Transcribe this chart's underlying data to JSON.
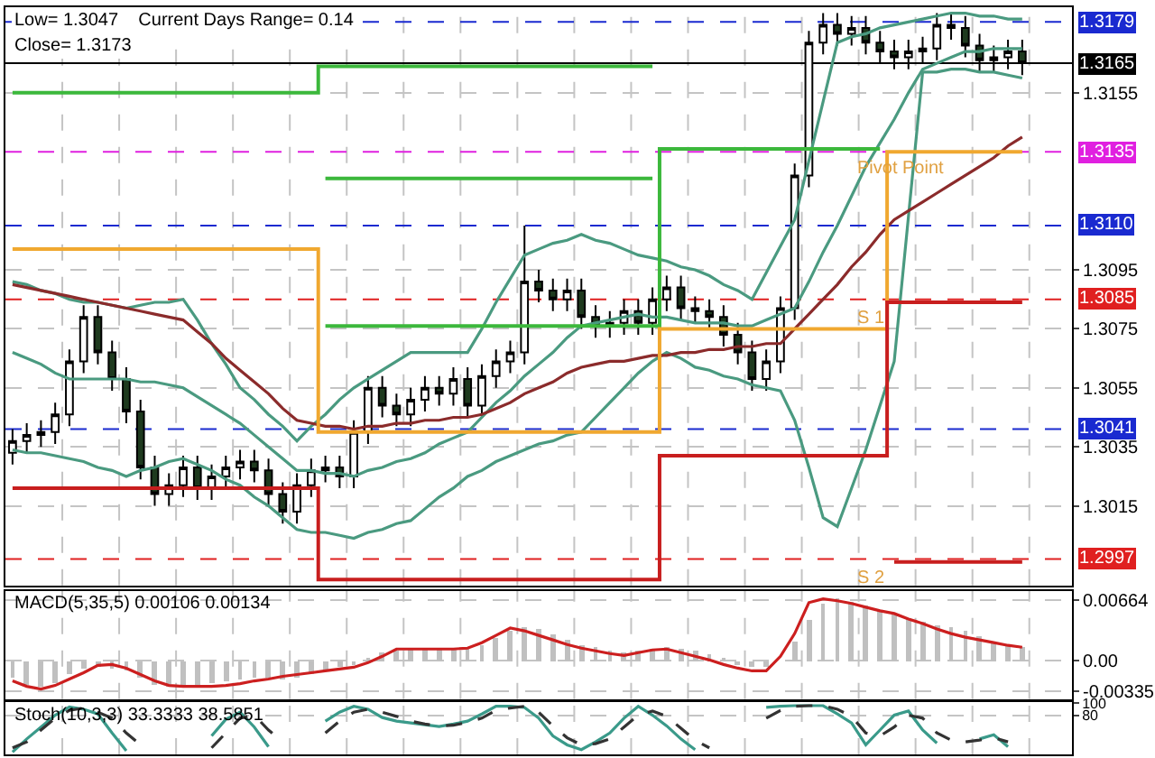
{
  "chart_data": [
    {
      "type": "candlestick",
      "categories": [
        null,
        null,
        null,
        null,
        null,
        null,
        null,
        null,
        null,
        null,
        null,
        null,
        null,
        null,
        null,
        null,
        null,
        null,
        null,
        null,
        null,
        null,
        null,
        null,
        null,
        null,
        null,
        null,
        null,
        null,
        null,
        null,
        null,
        null,
        null,
        null,
        null,
        null,
        null,
        null,
        null,
        null,
        null,
        null,
        null,
        null,
        null,
        null,
        null,
        null,
        null,
        null,
        null,
        null,
        null,
        null,
        null,
        null,
        null,
        null,
        null,
        null,
        null,
        null,
        null,
        null,
        null,
        null,
        null,
        null,
        null,
        null
      ],
      "ohlc": [
        [
          1.3033,
          1.3041,
          1.3029,
          1.3037
        ],
        [
          1.3037,
          1.3043,
          1.3033,
          1.3039
        ],
        [
          1.3039,
          1.3044,
          1.3035,
          1.304
        ],
        [
          1.304,
          1.305,
          1.3036,
          1.3046
        ],
        [
          1.3046,
          1.3068,
          1.3042,
          1.3064
        ],
        [
          1.3064,
          1.3083,
          1.306,
          1.3079
        ],
        [
          1.3079,
          1.3083,
          1.3063,
          1.3067
        ],
        [
          1.3067,
          1.3071,
          1.3054,
          1.3058
        ],
        [
          1.3058,
          1.3062,
          1.3043,
          1.3047
        ],
        [
          1.3047,
          1.3051,
          1.3024,
          1.3028
        ],
        [
          1.3028,
          1.3032,
          1.3015,
          1.3019
        ],
        [
          1.3019,
          1.3026,
          1.3015,
          1.3022
        ],
        [
          1.3022,
          1.3032,
          1.3018,
          1.3028
        ],
        [
          1.3028,
          1.3032,
          1.3017,
          1.3021
        ],
        [
          1.3021,
          1.3029,
          1.3017,
          1.3025
        ],
        [
          1.3025,
          1.3032,
          1.3021,
          1.3028
        ],
        [
          1.3028,
          1.3034,
          1.3024,
          1.303
        ],
        [
          1.303,
          1.3034,
          1.3023,
          1.3027
        ],
        [
          1.3027,
          1.3031,
          1.3015,
          1.3019
        ],
        [
          1.3019,
          1.3023,
          1.3009,
          1.3013
        ],
        [
          1.3013,
          1.3026,
          1.3009,
          1.3022
        ],
        [
          1.3022,
          1.3031,
          1.3018,
          1.3027
        ],
        [
          1.3027,
          1.3032,
          1.3023,
          1.3028
        ],
        [
          1.3028,
          1.3032,
          1.3021,
          1.3025
        ],
        [
          1.3025,
          1.3044,
          1.3021,
          1.304
        ],
        [
          1.304,
          1.3059,
          1.3036,
          1.3055
        ],
        [
          1.3055,
          1.3059,
          1.3045,
          1.3049
        ],
        [
          1.3049,
          1.3053,
          1.3042,
          1.3046
        ],
        [
          1.3046,
          1.3055,
          1.3042,
          1.3051
        ],
        [
          1.3051,
          1.3059,
          1.3047,
          1.3055
        ],
        [
          1.3055,
          1.3059,
          1.3049,
          1.3053
        ],
        [
          1.3053,
          1.3062,
          1.3049,
          1.3058
        ],
        [
          1.3058,
          1.3062,
          1.3045,
          1.3049
        ],
        [
          1.3049,
          1.3063,
          1.3045,
          1.3059
        ],
        [
          1.3059,
          1.3068,
          1.3055,
          1.3064
        ],
        [
          1.3064,
          1.3071,
          1.306,
          1.3067
        ],
        [
          1.3067,
          1.311,
          1.3063,
          1.3091
        ],
        [
          1.3091,
          1.3095,
          1.3084,
          1.3088
        ],
        [
          1.3088,
          1.3092,
          1.3081,
          1.3085
        ],
        [
          1.3085,
          1.3092,
          1.3081,
          1.3088
        ],
        [
          1.3088,
          1.3092,
          1.3075,
          1.3079
        ],
        [
          1.3079,
          1.3083,
          1.3072,
          1.3076
        ],
        [
          1.3076,
          1.3081,
          1.3072,
          1.3077
        ],
        [
          1.3077,
          1.3085,
          1.3073,
          1.3081
        ],
        [
          1.3081,
          1.3085,
          1.3073,
          1.3077
        ],
        [
          1.3077,
          1.3089,
          1.3073,
          1.3085
        ],
        [
          1.3085,
          1.3093,
          1.3081,
          1.3089
        ],
        [
          1.3089,
          1.3093,
          1.3078,
          1.3082
        ],
        [
          1.3082,
          1.3086,
          1.3077,
          1.3081
        ],
        [
          1.3081,
          1.3085,
          1.3075,
          1.3079
        ],
        [
          1.3079,
          1.3083,
          1.3069,
          1.3073
        ],
        [
          1.3073,
          1.3077,
          1.3063,
          1.3067
        ],
        [
          1.3067,
          1.3071,
          1.3054,
          1.3058
        ],
        [
          1.3058,
          1.3068,
          1.3054,
          1.3064
        ],
        [
          1.3064,
          1.3086,
          1.306,
          1.3082
        ],
        [
          1.3082,
          1.3131,
          1.3078,
          1.3127
        ],
        [
          1.3127,
          1.3176,
          1.3123,
          1.3172
        ],
        [
          1.3172,
          1.3182,
          1.3168,
          1.3178
        ],
        [
          1.3178,
          1.3182,
          1.3171,
          1.3175
        ],
        [
          1.3175,
          1.3181,
          1.3171,
          1.3177
        ],
        [
          1.3177,
          1.3181,
          1.3168,
          1.3172
        ],
        [
          1.3172,
          1.3176,
          1.3165,
          1.3169
        ],
        [
          1.3169,
          1.3173,
          1.3163,
          1.3167
        ],
        [
          1.3167,
          1.3173,
          1.3163,
          1.3169
        ],
        [
          1.3169,
          1.3174,
          1.3165,
          1.317
        ],
        [
          1.317,
          1.3182,
          1.3166,
          1.3178
        ],
        [
          1.3178,
          1.3182,
          1.3173,
          1.3177
        ],
        [
          1.3177,
          1.3181,
          1.3167,
          1.3171
        ],
        [
          1.3171,
          1.3175,
          1.3162,
          1.3166
        ],
        [
          1.3166,
          1.3171,
          1.3162,
          1.3167
        ],
        [
          1.3167,
          1.3173,
          1.3163,
          1.3169
        ],
        [
          1.3169,
          1.3173,
          1.3161,
          1.3165
        ]
      ],
      "series": [
        {
          "type": "line",
          "color": "#4a9a80",
          "values": [
            1.3091,
            1.309,
            1.3088,
            1.3087,
            1.3085,
            1.3084,
            1.3084,
            1.3083,
            1.3082,
            1.3083,
            1.3084,
            1.3084,
            1.3085,
            1.3078,
            1.307,
            1.3063,
            1.3055,
            1.3051,
            1.3046,
            1.3042,
            1.3037,
            1.3042,
            1.3046,
            1.3051,
            1.3055,
            1.3058,
            1.3061,
            1.3064,
            1.3067,
            1.3067,
            1.3067,
            1.3067,
            1.3067,
            1.3075,
            1.3084,
            1.3092,
            1.31,
            1.3102,
            1.3104,
            1.3105,
            1.3107,
            1.3105,
            1.3104,
            1.3102,
            1.31,
            1.3099,
            1.3098,
            1.3096,
            1.3095,
            1.3093,
            1.309,
            1.3088,
            1.3085,
            1.3094,
            1.3103,
            1.3112,
            1.3132,
            1.3152,
            1.3172,
            1.3174,
            1.3175,
            1.3177,
            1.3178,
            1.3179,
            1.318,
            1.3181,
            1.3182,
            1.3182,
            1.3181,
            1.3181,
            1.318,
            1.318
          ]
        },
        {
          "type": "line",
          "color": "#4a9a80",
          "values": [
            1.3067,
            1.3065,
            1.3063,
            1.306,
            1.3058,
            1.3058,
            1.3058,
            1.3058,
            1.3058,
            1.3057,
            1.3057,
            1.3056,
            1.3055,
            1.3052,
            1.3049,
            1.3046,
            1.3043,
            1.3039,
            1.3035,
            1.3031,
            1.3027,
            1.3027,
            1.3026,
            1.3026,
            1.3025,
            1.3027,
            1.3028,
            1.303,
            1.3031,
            1.3033,
            1.3036,
            1.3038,
            1.304,
            1.3045,
            1.305,
            1.3054,
            1.3059,
            1.3063,
            1.3067,
            1.3072,
            1.3076,
            1.3077,
            1.3078,
            1.3079,
            1.308,
            1.3079,
            1.3079,
            1.3078,
            1.3077,
            1.3077,
            1.3077,
            1.3076,
            1.3076,
            1.3078,
            1.308,
            1.3082,
            1.3091,
            1.3101,
            1.311,
            1.312,
            1.313,
            1.3138,
            1.3146,
            1.3155,
            1.3163,
            1.3165,
            1.3167,
            1.3169,
            1.3169,
            1.317,
            1.317,
            1.317
          ]
        },
        {
          "type": "line",
          "color": "#4a9a80",
          "values": [
            1.3034,
            1.3033,
            1.3033,
            1.3032,
            1.3031,
            1.303,
            1.3028,
            1.3027,
            1.3025,
            1.3027,
            1.3028,
            1.303,
            1.3031,
            1.3029,
            1.3027,
            1.3024,
            1.3022,
            1.3018,
            1.3015,
            1.3011,
            1.3007,
            1.3006,
            1.3006,
            1.3005,
            1.3004,
            1.3006,
            1.3007,
            1.3009,
            1.301,
            1.3014,
            1.3018,
            1.3021,
            1.3025,
            1.3027,
            1.303,
            1.3032,
            1.3034,
            1.3036,
            1.3037,
            1.3039,
            1.304,
            1.3045,
            1.305,
            1.3055,
            1.306,
            1.3064,
            1.3067,
            1.3065,
            1.3062,
            1.3061,
            1.3059,
            1.3058,
            1.3056,
            1.3055,
            1.3054,
            1.3044,
            1.3028,
            1.3011,
            1.3008,
            1.3021,
            1.3034,
            1.3049,
            1.3064,
            1.3113,
            1.3162,
            1.3162,
            1.3163,
            1.3163,
            1.3162,
            1.3162,
            1.3161,
            1.316
          ]
        },
        {
          "type": "line",
          "color": "#8b2b2b",
          "values": [
            1.309,
            1.3089,
            1.3088,
            1.3087,
            1.3086,
            1.3085,
            1.3084,
            1.3083,
            1.3082,
            1.3081,
            1.308,
            1.3079,
            1.3078,
            1.3074,
            1.307,
            1.3065,
            1.3061,
            1.3057,
            1.3053,
            1.3048,
            1.3044,
            1.3043,
            1.3042,
            1.3042,
            1.3041,
            1.3042,
            1.3042,
            1.3043,
            1.3043,
            1.3044,
            1.3044,
            1.3045,
            1.3045,
            1.3046,
            1.3048,
            1.305,
            1.3053,
            1.3055,
            1.3057,
            1.306,
            1.3062,
            1.3063,
            1.3064,
            1.3064,
            1.3065,
            1.3066,
            1.3066,
            1.3067,
            1.3067,
            1.3068,
            1.3068,
            1.3069,
            1.3069,
            1.307,
            1.307,
            1.3075,
            1.308,
            1.3085,
            1.309,
            1.3096,
            1.3101,
            1.3107,
            1.3112,
            1.3115,
            1.3118,
            1.3121,
            1.3124,
            1.3127,
            1.313,
            1.3133,
            1.3137,
            1.314
          ]
        },
        {
          "type": "step",
          "color": "#3cb83c",
          "values": [
            1.3155,
            1.3155,
            1.3155,
            1.3155,
            1.3155,
            1.3155,
            1.3155,
            1.3155,
            1.3155,
            1.3155,
            1.3155,
            1.3155,
            1.3155,
            1.3155,
            1.3155,
            1.3155,
            1.3155,
            1.3155,
            1.3155,
            1.3155,
            1.3155,
            1.3155,
            1.3164,
            1.3164,
            1.3164,
            1.3164,
            1.3164,
            1.3164,
            1.3164,
            1.3164,
            1.3164,
            1.3164,
            1.3164,
            1.3164,
            1.3164,
            1.3164,
            1.3164,
            1.3164,
            1.3164,
            1.3164,
            1.3164,
            1.3164,
            1.3164,
            1.3164,
            1.3164,
            1.3164,
            null,
            null,
            null,
            null,
            null,
            null,
            null,
            null,
            null,
            null,
            null,
            null,
            null,
            null,
            null,
            null,
            null,
            null,
            null,
            null,
            null,
            null,
            null,
            null,
            null,
            null
          ]
        },
        {
          "type": "step",
          "color": "#3cb83c",
          "values": [
            null,
            null,
            null,
            null,
            null,
            null,
            null,
            null,
            null,
            null,
            null,
            null,
            null,
            null,
            null,
            null,
            null,
            null,
            null,
            null,
            null,
            null,
            1.3126,
            1.3126,
            1.3126,
            1.3126,
            1.3126,
            1.3126,
            1.3126,
            1.3126,
            1.3126,
            1.3126,
            1.3126,
            1.3126,
            1.3126,
            1.3126,
            1.3126,
            1.3126,
            1.3126,
            1.3126,
            1.3126,
            1.3126,
            1.3126,
            1.3126,
            1.3126,
            1.3126,
            null,
            null,
            null,
            null,
            null,
            null,
            null,
            null,
            null,
            null,
            null,
            null,
            null,
            null,
            null,
            null,
            null,
            null,
            null,
            null,
            null,
            null,
            null,
            null,
            null,
            null
          ]
        },
        {
          "type": "step",
          "color": "#3cb83c",
          "values": [
            null,
            null,
            null,
            null,
            null,
            null,
            null,
            null,
            null,
            null,
            null,
            null,
            null,
            null,
            null,
            null,
            null,
            null,
            null,
            null,
            null,
            null,
            1.3076,
            1.3076,
            1.3076,
            1.3076,
            1.3076,
            1.3076,
            1.3076,
            1.3076,
            1.3076,
            1.3076,
            1.3076,
            1.3076,
            1.3076,
            1.3076,
            1.3076,
            1.3076,
            1.3076,
            1.3076,
            1.3076,
            1.3076,
            1.3076,
            1.3076,
            1.3076,
            1.3076,
            1.3136,
            1.3136,
            1.3136,
            1.3136,
            1.3136,
            1.3136,
            1.3136,
            1.3136,
            1.3136,
            1.3136,
            1.3136,
            1.3136,
            1.3136,
            1.3136,
            1.3136,
            1.3136,
            null,
            null,
            null,
            null,
            null,
            null,
            null,
            null,
            null,
            null
          ]
        },
        {
          "type": "step",
          "color": "#f0a830",
          "values": [
            1.3102,
            1.3102,
            1.3102,
            1.3102,
            1.3102,
            1.3102,
            1.3102,
            1.3102,
            1.3102,
            1.3102,
            1.3102,
            1.3102,
            1.3102,
            1.3102,
            1.3102,
            1.3102,
            1.3102,
            1.3102,
            1.3102,
            1.3102,
            1.3102,
            1.3102,
            1.304,
            1.304,
            1.304,
            1.304,
            1.304,
            1.304,
            1.304,
            1.304,
            1.304,
            1.304,
            1.304,
            1.304,
            1.304,
            1.304,
            1.304,
            1.304,
            1.304,
            1.304,
            1.304,
            1.304,
            1.304,
            1.304,
            1.304,
            1.304,
            1.3075,
            1.3075,
            1.3075,
            1.3075,
            1.3075,
            1.3075,
            1.3075,
            1.3075,
            1.3075,
            1.3075,
            1.3075,
            1.3075,
            1.3075,
            1.3075,
            1.3075,
            1.3075,
            1.3135,
            1.3135,
            1.3135,
            1.3135,
            1.3135,
            1.3135,
            1.3135,
            1.3135,
            1.3135,
            1.3135
          ]
        },
        {
          "type": "step",
          "color": "#c81e1e",
          "values": [
            1.3021,
            1.3021,
            1.3021,
            1.3021,
            1.3021,
            1.3021,
            1.3021,
            1.3021,
            1.3021,
            1.3021,
            1.3021,
            1.3021,
            1.3021,
            1.3021,
            1.3021,
            1.3021,
            1.3021,
            1.3021,
            1.3021,
            1.3021,
            1.3021,
            1.3021,
            1.299,
            1.299,
            1.299,
            1.299,
            1.299,
            1.299,
            1.299,
            1.299,
            1.299,
            1.299,
            1.299,
            1.299,
            1.299,
            1.299,
            1.299,
            1.299,
            1.299,
            1.299,
            1.299,
            1.299,
            1.299,
            1.299,
            1.299,
            1.299,
            1.3032,
            1.3032,
            1.3032,
            1.3032,
            1.3032,
            1.3032,
            1.3032,
            1.3032,
            1.3032,
            1.3032,
            1.3032,
            1.3032,
            1.3032,
            1.3032,
            1.3032,
            1.3032,
            1.3084,
            1.3084,
            1.3084,
            1.3084,
            1.3084,
            1.3084,
            1.3084,
            1.3084,
            1.3084,
            1.3084
          ]
        },
        {
          "type": "step",
          "color": "#c81e1e",
          "values": [
            null,
            null,
            null,
            null,
            null,
            null,
            null,
            null,
            null,
            null,
            null,
            null,
            null,
            null,
            null,
            null,
            null,
            null,
            null,
            null,
            null,
            null,
            null,
            null,
            null,
            null,
            null,
            null,
            null,
            null,
            null,
            null,
            null,
            null,
            null,
            null,
            null,
            null,
            null,
            null,
            null,
            null,
            null,
            null,
            null,
            null,
            null,
            null,
            null,
            null,
            null,
            null,
            null,
            null,
            null,
            null,
            null,
            null,
            null,
            null,
            null,
            null,
            1.2996,
            1.2996,
            1.2996,
            1.2996,
            1.2996,
            1.2996,
            1.2996,
            1.2996,
            1.2996,
            1.2996
          ]
        }
      ],
      "ylim": [
        1.2988,
        1.3184
      ],
      "yticks": [
        1.3155,
        1.3095,
        1.3075,
        1.3055,
        1.3035,
        1.3015
      ],
      "tick_labels": "y",
      "grid": "y",
      "legend": false,
      "ref_lines": [
        {
          "axis": "y",
          "value": 1.3179,
          "label": "1.3179",
          "color": "#1a2ad0",
          "line_style": "dashed"
        },
        {
          "axis": "y",
          "value": 1.3165,
          "label": "1.3165",
          "color": "#000000",
          "line_style": "solid"
        },
        {
          "axis": "y",
          "value": 1.3135,
          "label": "1.3135",
          "color": "#e020e0",
          "line_style": "dashed"
        },
        {
          "axis": "y",
          "value": 1.311,
          "label": "1.3110",
          "color": "#1a2ad0",
          "line_style": "dashed"
        },
        {
          "axis": "y",
          "value": 1.3085,
          "label": "1.3085",
          "color": "#e02020",
          "line_style": "dashed"
        },
        {
          "axis": "y",
          "value": 1.3041,
          "label": "1.3041",
          "color": "#1a2ad0",
          "line_style": "dashed"
        },
        {
          "axis": "y",
          "value": 1.2997,
          "label": "1.2997",
          "color": "#e02020",
          "line_style": "dashed"
        }
      ],
      "annotations": [
        "Low= 1.3047    Current Days Range= 0.14",
        "Close= 1.3173",
        {
          "text": "Pivot Point",
          "y": 1.3135
        },
        {
          "text": "S 1",
          "y": 1.3084
        },
        {
          "text": "S 2",
          "y": 1.2996
        }
      ]
    },
    {
      "type": "bar",
      "title": "MACD(5,35,5) 0.00106 0.00134",
      "categories": [
        null,
        null,
        null,
        null,
        null,
        null,
        null,
        null,
        null,
        null,
        null,
        null,
        null,
        null,
        null,
        null,
        null,
        null,
        null,
        null,
        null,
        null,
        null,
        null,
        null,
        null,
        null,
        null,
        null,
        null,
        null,
        null,
        null,
        null,
        null,
        null,
        null,
        null,
        null,
        null,
        null,
        null,
        null,
        null,
        null,
        null,
        null,
        null,
        null,
        null,
        null,
        null,
        null,
        null,
        null,
        null,
        null,
        null,
        null,
        null,
        null,
        null,
        null,
        null,
        null,
        null,
        null,
        null,
        null,
        null,
        null,
        null
      ],
      "series": [
        {
          "type": "bar",
          "color": "#c0c0c0",
          "values": [
            -0.0018,
            -0.0026,
            -0.0028,
            -0.0024,
            -0.0015,
            -0.0009,
            -0.0007,
            -0.0009,
            -0.0011,
            -0.0018,
            -0.0026,
            -0.0028,
            -0.0028,
            -0.0026,
            -0.0024,
            -0.0022,
            -0.002,
            -0.0018,
            -0.0018,
            -0.002,
            -0.0018,
            -0.0015,
            -0.0011,
            -0.0007,
            -0.0004,
            0.0004,
            0.0009,
            0.0011,
            0.0013,
            0.0013,
            0.0013,
            0.0013,
            0.0015,
            0.0018,
            0.0026,
            0.0033,
            0.0037,
            0.0035,
            0.0029,
            0.0024,
            0.0018,
            0.0015,
            0.0011,
            0.0009,
            0.0011,
            0.0013,
            0.0015,
            0.0013,
            0.0011,
            0.0007,
            0.0004,
            -0.0004,
            -0.0007,
            -0.0006,
            0.0,
            0.0022,
            0.0046,
            0.0064,
            0.007,
            0.0066,
            0.0061,
            0.0055,
            0.0052,
            0.0048,
            0.0044,
            0.004,
            0.0037,
            0.0033,
            0.0028,
            0.0022,
            0.0018,
            0.0015
          ]
        },
        {
          "type": "line",
          "color": "#cc1f1f",
          "values": [
            -0.0022,
            -0.0028,
            -0.0031,
            -0.0027,
            -0.002,
            -0.0013,
            -0.0005,
            -0.0004,
            -0.0008,
            -0.0015,
            -0.0022,
            -0.0027,
            -0.0028,
            -0.0028,
            -0.0028,
            -0.0027,
            -0.0025,
            -0.0022,
            -0.002,
            -0.0017,
            -0.0015,
            -0.0013,
            -0.0011,
            -0.0009,
            -0.0007,
            -0.0002,
            0.0005,
            0.0013,
            0.0013,
            0.0013,
            0.0013,
            0.0013,
            0.0014,
            0.002,
            0.0028,
            0.0036,
            0.0033,
            0.0028,
            0.0023,
            0.0018,
            0.0014,
            0.0011,
            0.0008,
            0.0006,
            0.0009,
            0.0012,
            0.0013,
            0.0009,
            0.0005,
            0.0001,
            -0.0004,
            -0.0008,
            -0.0011,
            -0.0011,
            0.0005,
            0.003,
            0.0064,
            0.0068,
            0.0066,
            0.0063,
            0.0059,
            0.0055,
            0.0052,
            0.0046,
            0.0041,
            0.0035,
            0.003,
            0.0026,
            0.0023,
            0.002,
            0.0017,
            0.0015
          ]
        }
      ],
      "ylim": [
        -0.0042,
        0.0077
      ],
      "yticks": [
        0.00664,
        {
          "value": 0,
          "label": "0.00"
        },
        -0.00335
      ],
      "tick_labels": "y",
      "grid": "y"
    },
    {
      "type": "line",
      "title": "Stoch(10,3,3) 33.3333 38.5851",
      "categories": [
        null,
        null,
        null,
        null,
        null,
        null,
        null,
        null,
        null,
        null,
        null,
        null,
        null,
        null,
        null,
        null,
        null,
        null,
        null,
        null,
        null,
        null,
        null,
        null,
        null,
        null,
        null,
        null,
        null,
        null,
        null,
        null,
        null,
        null,
        null,
        null,
        null,
        null,
        null,
        null,
        null,
        null,
        null,
        null,
        null,
        null,
        null,
        null,
        null,
        null,
        null,
        null,
        null,
        null,
        null,
        null,
        null,
        null,
        null,
        null,
        null,
        null,
        null,
        null,
        null,
        null,
        null,
        null,
        null,
        null,
        null,
        null
      ],
      "series": [
        {
          "type": "line",
          "color": "#3a9a8a",
          "line_style": "solid",
          "values": [
            18,
            40,
            60,
            80,
            94,
            90,
            82,
            50,
            20,
            null,
            null,
            null,
            null,
            null,
            45,
            73,
            85,
            60,
            27,
            null,
            null,
            null,
            70,
            85,
            95,
            90,
            76,
            70,
            67,
            64,
            61,
            65,
            70,
            82,
            95,
            95,
            93,
            75,
            45,
            30,
            22,
            35,
            50,
            75,
            95,
            80,
            62,
            40,
            22,
            null,
            null,
            null,
            null,
            93,
            95,
            96,
            96,
            96,
            82,
            67,
            30,
            55,
            80,
            87,
            55,
            33,
            null,
            null,
            40,
            47,
            27,
            null
          ]
        },
        {
          "type": "line",
          "color": "#333333",
          "line_style": "dashed",
          "values": [
            25,
            35,
            55,
            75,
            88,
            92,
            85,
            75,
            50,
            30,
            null,
            null,
            null,
            null,
            25,
            50,
            75,
            80,
            55,
            35,
            null,
            null,
            50,
            70,
            85,
            90,
            85,
            78,
            70,
            65,
            62,
            63,
            68,
            75,
            88,
            92,
            95,
            85,
            62,
            42,
            30,
            32,
            40,
            60,
            80,
            87,
            78,
            58,
            38,
            25,
            null,
            null,
            null,
            75,
            88,
            95,
            96,
            96,
            90,
            78,
            50,
            45,
            60,
            80,
            75,
            50,
            38,
            35,
            38,
            42,
            35,
            null
          ]
        }
      ],
      "ylim": [
        14,
        102
      ],
      "yticks": [
        80,
        100
      ],
      "tick_labels": "y",
      "grid": "y"
    }
  ]
}
